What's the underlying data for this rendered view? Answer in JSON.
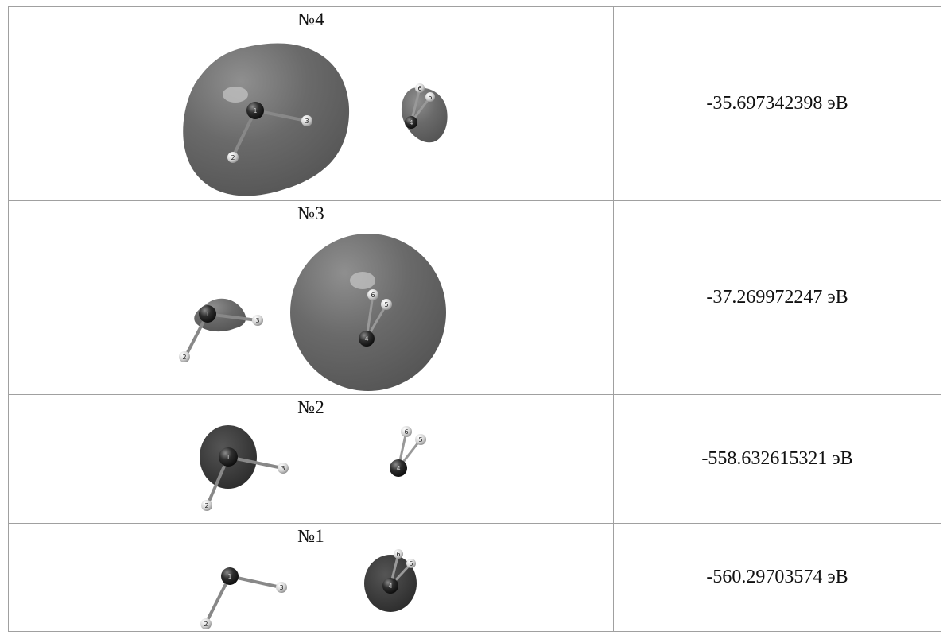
{
  "rows": [
    {
      "label": "№4",
      "energy": "-35.697342398 эВ"
    },
    {
      "label": "№3",
      "energy": "-37.269972247 эВ"
    },
    {
      "label": "№2",
      "energy": "-558.632615321 эВ"
    },
    {
      "label": "№1",
      "energy": "-560.29703574 эВ"
    }
  ],
  "atom_labels": [
    "1",
    "2",
    "3",
    "4",
    "5",
    "6"
  ],
  "colors": {
    "border": "#a0a0a0",
    "orbital": "#6d6d6d",
    "atom_dark": "#2a2a2a",
    "atom_light": "#e4e4e4"
  }
}
